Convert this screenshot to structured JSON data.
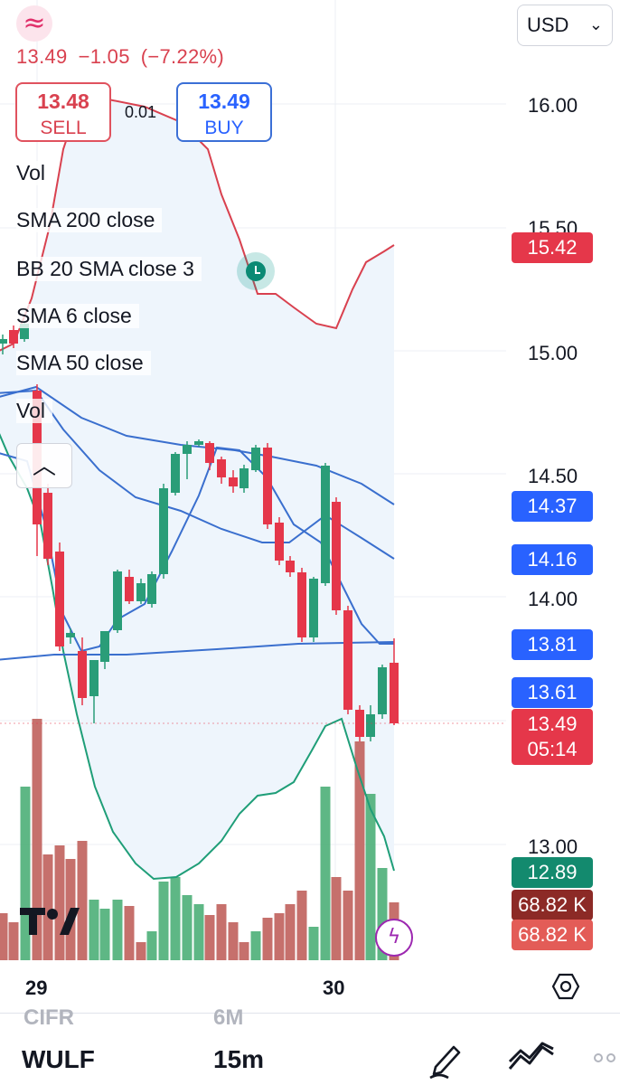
{
  "header": {
    "logo_glyph": "≈",
    "last_price": "13.49",
    "change": "−1.05",
    "change_pct": "(−7.22%)",
    "currency": "USD"
  },
  "trade": {
    "sell_price": "13.48",
    "sell_label": "SELL",
    "buy_price": "13.49",
    "buy_label": "BUY",
    "spread": "0.01"
  },
  "indicators": [
    "Vol",
    "SMA 200 close",
    "BB 20 SMA close 3",
    "SMA 6 close",
    "SMA 50 close",
    "Vol"
  ],
  "price_axis": {
    "labels": [
      "16.00",
      "15.50",
      "15.00",
      "14.50",
      "14.00",
      "13.00"
    ],
    "badges": {
      "bb_upper": "15.42",
      "sma_a": "14.37",
      "sma_b": "14.16",
      "sma_c": "13.81",
      "sma_d": "13.61",
      "last": "13.49",
      "countdown": "05:14",
      "bb_lower": "12.89",
      "vol_a": "68.82 K",
      "vol_b": "68.82 K"
    }
  },
  "time_axis": {
    "labels": [
      "29",
      "30"
    ]
  },
  "bottom_bar": {
    "ghost_symbol": "CIFR",
    "ghost_interval": "6M",
    "symbol": "WULF",
    "interval": "15m"
  },
  "colors": {
    "up": "#2a9d78",
    "down": "#e5374a",
    "sma": "#3a6fce",
    "bb_upper": "#d9414f",
    "bb_lower": "#1f9e78",
    "bb_fill": "#eef5fc"
  },
  "icons": {
    "alert": "alarm-clock-icon",
    "collapse": "chevron-up-icon",
    "flash": "lightning-icon",
    "settings": "hexagon-settings-icon",
    "draw": "pen-icon",
    "indicators": "indicators-icon"
  }
}
